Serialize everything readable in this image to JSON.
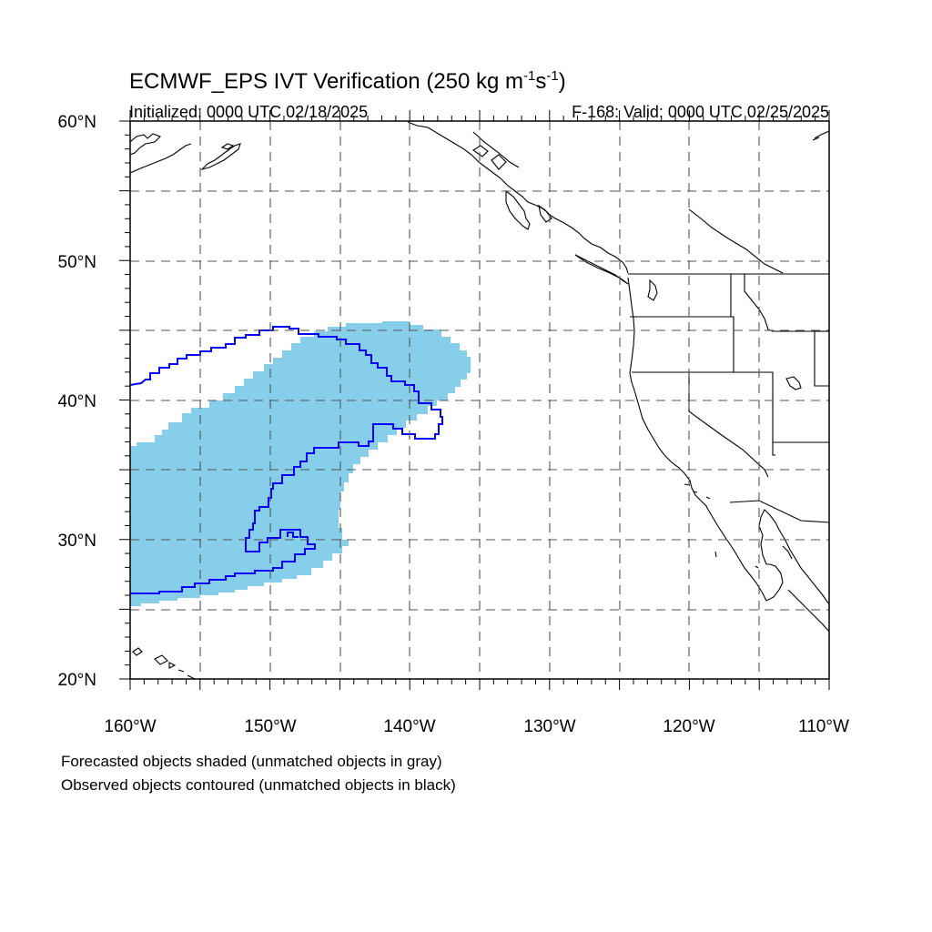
{
  "figure": {
    "title_main": "ECMWF_EPS IVT Verification (250 kg m",
    "title_sup1": "-1",
    "title_mid": "s",
    "title_sup2": "-1",
    "title_end": ")",
    "initialized": "Initialized: 0000 UTC 02/18/2025",
    "valid": "F-168: Valid: 0000 UTC 02/25/2025",
    "footnote_1": "Forecasted objects shaded (unmatched objects in gray)",
    "footnote_2": "Observed objects contoured (unmatched objects in black)"
  },
  "map": {
    "lon_range": [
      -160,
      -110
    ],
    "lat_range": [
      20,
      60
    ],
    "lat_labels": [
      "20°N",
      "30°N",
      "40°N",
      "50°N",
      "60°N"
    ],
    "lon_labels": [
      "160°W",
      "150°W",
      "140°W",
      "130°W",
      "120°W",
      "110°W"
    ],
    "colors": {
      "forecast_shade": "#87ceeb",
      "observed_contour": "#0000ff",
      "coastline": "#000000",
      "grid": "#555555"
    }
  }
}
